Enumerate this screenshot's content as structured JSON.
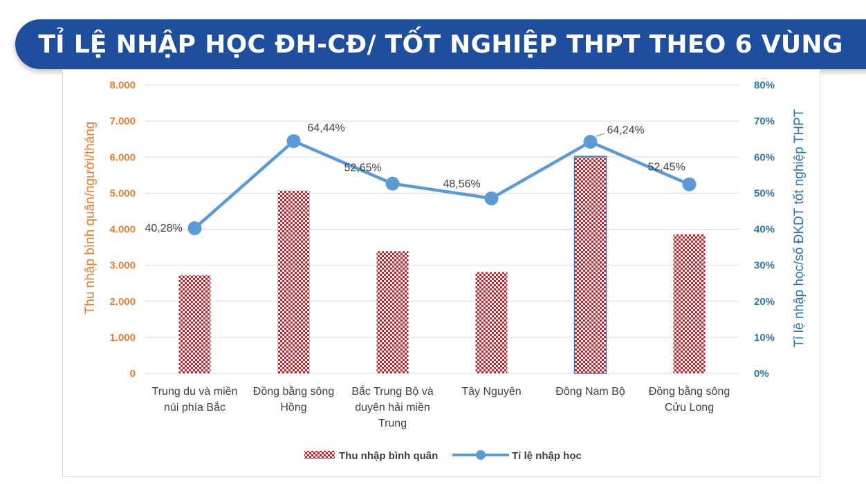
{
  "title": "TỈ LỆ NHẬP HỌC ĐH-CĐ/ TỐT NGHIỆP THPT THEO 6 VÙNG",
  "chart_data": {
    "type": "bar+line",
    "categories": [
      [
        "Trung du và miền",
        "núi phía Bắc"
      ],
      [
        "Đồng bằng sông",
        "Hồng"
      ],
      [
        "Bắc Trung Bộ và",
        "duyên hải miền",
        "Trung"
      ],
      [
        "Tây Nguyên"
      ],
      [
        "Đông Nam Bộ"
      ],
      [
        "Đồng bằng sông",
        "Cửu Long"
      ]
    ],
    "series": [
      {
        "name": "Thu nhập bình quân",
        "type": "bar",
        "axis": "left",
        "values": [
          2720,
          5070,
          3390,
          2810,
          6020,
          3860
        ],
        "color": "#e3141c"
      },
      {
        "name": "Tỉ lệ nhập học",
        "type": "line",
        "axis": "right",
        "values": [
          40.28,
          64.44,
          52.65,
          48.56,
          64.24,
          52.45
        ],
        "labels": [
          "40,28%",
          "64,44%",
          "52,65%",
          "48,56%",
          "64,24%",
          "52,45%"
        ],
        "color": "#5b9bd5"
      }
    ],
    "ylabel": "Thu nhập bình quân/người/tháng",
    "y2label": "Tỉ lệ nhập học/số ĐKDT tốt nghiệp THPT",
    "ylim": [
      0,
      8000
    ],
    "y2lim": [
      0,
      80
    ],
    "yticks": [
      "0",
      "1.000",
      "2.000",
      "3.000",
      "4.000",
      "5.000",
      "6.000",
      "7.000",
      "8.000"
    ],
    "y2ticks": [
      "0%",
      "10%",
      "20%",
      "30%",
      "40%",
      "50%",
      "60%",
      "70%",
      "80%"
    ],
    "grid": true,
    "legend": "bottom"
  },
  "colors": {
    "banner": "#1f4e9c",
    "left_axis": "#ed7d31",
    "right_axis": "#2e75b6"
  }
}
